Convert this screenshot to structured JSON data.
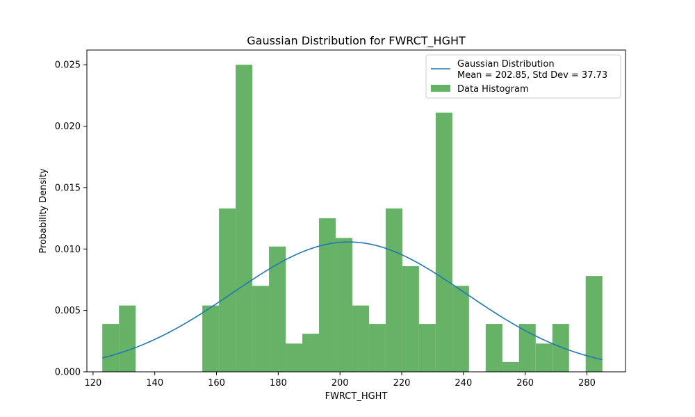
{
  "chart_data": {
    "type": "bar",
    "title": "Gaussian Distribution for FWRCT_HGHT",
    "xlabel": "FWRCT_HGHT",
    "ylabel": "Probability Density",
    "xlim": [
      118,
      292.5
    ],
    "ylim": [
      0,
      0.0262
    ],
    "xticks": [
      120,
      140,
      160,
      180,
      200,
      220,
      240,
      260,
      280
    ],
    "yticks": [
      0.0,
      0.005,
      0.01,
      0.015,
      0.02,
      0.025
    ],
    "ytick_labels": [
      "0.000",
      "0.005",
      "0.010",
      "0.015",
      "0.020",
      "0.025"
    ],
    "grid": false,
    "legend_position": "upper-right",
    "histogram": {
      "name": "Data Histogram",
      "color": "#66b266",
      "bin_edges": [
        123.0,
        128.4,
        133.8,
        139.2,
        144.6,
        150.0,
        155.4,
        160.8,
        166.2,
        171.6,
        177.0,
        182.4,
        187.8,
        193.2,
        198.6,
        204.0,
        209.4,
        214.8,
        220.2,
        225.6,
        231.0,
        236.4,
        241.8,
        247.2,
        252.6,
        258.0,
        263.4,
        268.8,
        274.2,
        279.6,
        285.0
      ],
      "densities": [
        0.0039,
        0.0054,
        0,
        0,
        0,
        0,
        0.0054,
        0.0133,
        0.025,
        0.007,
        0.0102,
        0.0023,
        0.0031,
        0.0125,
        0.0109,
        0.0054,
        0.0039,
        0.0133,
        0.0086,
        0.0039,
        0.0211,
        0.007,
        0,
        0.0039,
        0.0008,
        0.0039,
        0.0023,
        0.0039,
        0,
        0.0078
      ]
    },
    "gaussian": {
      "name_line1": "Gaussian Distribution",
      "name_line2": "Mean = 202.85, Std Dev = 37.73",
      "mean": 202.85,
      "std": 37.73,
      "x_range": [
        123,
        285
      ],
      "color": "#1f77b4"
    }
  }
}
